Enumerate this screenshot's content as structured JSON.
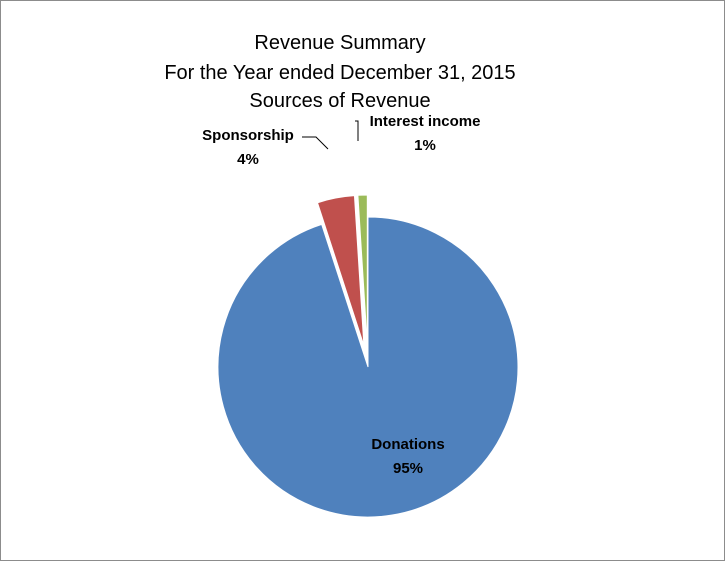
{
  "chart_data": {
    "type": "pie",
    "title_lines": [
      "Revenue Summary",
      "For the Year ended December 31, 2015",
      "Sources of Revenue"
    ],
    "slices": [
      {
        "name": "Donations",
        "value": 95,
        "pct_label": "95%",
        "color": "#4F81BD",
        "exploded": false
      },
      {
        "name": "Sponsorship",
        "value": 4,
        "pct_label": "4%",
        "color": "#C0504D",
        "exploded": true
      },
      {
        "name": "Interest income",
        "value": 1,
        "pct_label": "1%",
        "color": "#9BBB59",
        "exploded": true
      }
    ],
    "legend": "none"
  }
}
